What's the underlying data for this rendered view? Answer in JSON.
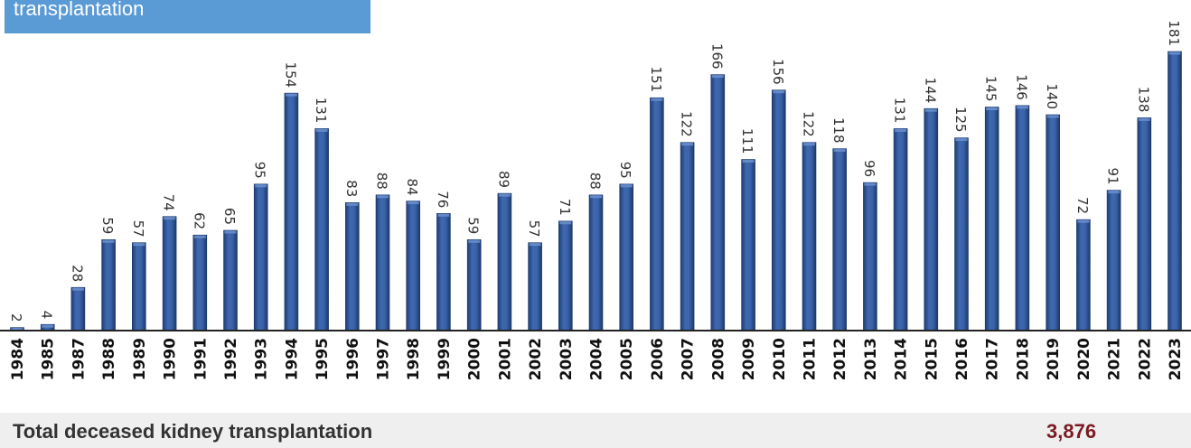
{
  "header": {
    "title": "transplantation"
  },
  "chart_data": {
    "type": "bar",
    "categories": [
      "1984",
      "1985",
      "1987",
      "1988",
      "1989",
      "1990",
      "1991",
      "1992",
      "1993",
      "1994",
      "1995",
      "1996",
      "1997",
      "1998",
      "1999",
      "2000",
      "2001",
      "2002",
      "2003",
      "2004",
      "2005",
      "2006",
      "2007",
      "2008",
      "2009",
      "2010",
      "2011",
      "2012",
      "2013",
      "2014",
      "2015",
      "2016",
      "2017",
      "2018",
      "2019",
      "2020",
      "2021",
      "2022",
      "2023"
    ],
    "values": [
      2,
      4,
      28,
      59,
      57,
      74,
      62,
      65,
      95,
      154,
      131,
      83,
      88,
      84,
      76,
      59,
      89,
      57,
      71,
      88,
      95,
      151,
      122,
      166,
      111,
      156,
      122,
      118,
      96,
      131,
      144,
      125,
      145,
      146,
      140,
      72,
      91,
      138,
      181
    ],
    "bar_color": "#2f5597",
    "xlabel": "",
    "ylabel": "",
    "ylim": [
      0,
      181
    ],
    "grid": false,
    "data_labels": true
  },
  "total": {
    "label": "Total deceased kidney transplantation",
    "value": "3,876",
    "value_color": "#7b1a22"
  }
}
